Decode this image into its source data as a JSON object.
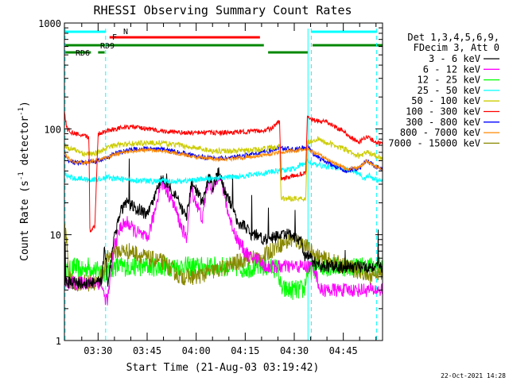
{
  "chart_data": {
    "type": "line",
    "title": "RHESSI Observing Summary Count Rates",
    "xlabel": "Start Time (21-Aug-03 03:19:42)",
    "ylabel_main": "Count Rate (s",
    "ylabel_exp1": "-1",
    "ylabel_mid": " detector",
    "ylabel_exp2": "-1",
    "ylabel_end": ")",
    "yscale": "log",
    "ylim": [
      1,
      1000
    ],
    "xlim_minutes": [
      199.7,
      297.0
    ],
    "x_ticks": [
      {
        "minute": 210,
        "label": "03:30"
      },
      {
        "minute": 225,
        "label": "03:45"
      },
      {
        "minute": 240,
        "label": "04:00"
      },
      {
        "minute": 255,
        "label": "04:15"
      },
      {
        "minute": 270,
        "label": "04:30"
      },
      {
        "minute": 285,
        "label": "04:45"
      }
    ],
    "y_ticks": [
      {
        "value": 1,
        "label": "1"
      },
      {
        "value": 10,
        "label": "10"
      },
      {
        "value": 100,
        "label": "100"
      },
      {
        "value": 1000,
        "label": "1000"
      }
    ],
    "legend_header": [
      "Det 1,3,4,5,6,9,",
      "FDecim 3, Att 0"
    ],
    "series": [
      {
        "name": "3 - 6 keV",
        "color": "#000000",
        "noise": 0.08,
        "spikes": 1,
        "t": [
          199.7,
          206,
          206.5,
          207,
          207.5,
          208,
          208.5,
          209.8,
          210,
          211,
          212,
          213,
          215,
          217,
          219,
          221,
          223,
          225,
          227,
          229,
          230,
          233,
          235,
          237,
          238.5,
          240,
          242,
          243,
          244,
          245,
          247,
          249,
          250,
          251.5,
          253,
          255,
          256.5,
          259,
          261,
          264,
          266,
          268,
          270,
          272,
          273,
          274,
          276,
          278,
          280,
          284,
          288,
          292,
          297
        ],
        "v": [
          3.5,
          3.5,
          3.5,
          3.5,
          3.5,
          3.5,
          3.5,
          3.5,
          3.5,
          3.5,
          8,
          3.5,
          10,
          17,
          20,
          18,
          17,
          15,
          21,
          33,
          33,
          26,
          19,
          14,
          30,
          26,
          20,
          27,
          35,
          28,
          40,
          24,
          22,
          16,
          13,
          12,
          10,
          10,
          9,
          9.5,
          10,
          10,
          9.5,
          9,
          6,
          6.5,
          5.5,
          5,
          5,
          5,
          5,
          5,
          5
        ]
      },
      {
        "name": "6 - 12 keV",
        "color": "#ff00ff",
        "noise": 0.09,
        "spikes": 0,
        "t": [
          199.7,
          206,
          207,
          208,
          209,
          210,
          211,
          212,
          213,
          215,
          217,
          219,
          221,
          223,
          225,
          227,
          229,
          230,
          233,
          235,
          237,
          238.5,
          240,
          242,
          243,
          244,
          245,
          247,
          249,
          250,
          251.5,
          253,
          255,
          256.5,
          259,
          261,
          264,
          266,
          268,
          270,
          272,
          273,
          274,
          276,
          278,
          280,
          284,
          288,
          292,
          297
        ],
        "v": [
          3.5,
          3.5,
          3.5,
          3.5,
          3.5,
          3.5,
          3.5,
          2.5,
          2.5,
          8,
          12,
          13,
          11,
          10,
          9,
          15,
          30,
          30,
          20,
          13,
          9,
          27,
          20,
          14,
          25,
          33,
          25,
          39,
          21,
          15,
          11,
          8.5,
          7,
          6,
          6,
          5,
          5,
          5,
          5,
          5,
          5,
          5,
          5,
          5,
          3,
          3,
          3,
          3,
          3,
          3
        ]
      },
      {
        "name": "12 - 25 keV",
        "color": "#00ff00",
        "noise": 0.13,
        "spikes": 0,
        "t": [
          199.7,
          201,
          203,
          205,
          207,
          210,
          213,
          215,
          220,
          225,
          230,
          235,
          240,
          245,
          250,
          255,
          260,
          265,
          266,
          268,
          270,
          272,
          273,
          274,
          278,
          282,
          286,
          290,
          294,
          297
        ],
        "v": [
          5,
          4.5,
          5,
          4.5,
          5,
          4.5,
          4.5,
          5,
          5,
          5,
          5,
          5,
          5,
          5,
          5,
          4.8,
          5,
          4.8,
          3,
          3,
          3,
          3,
          3,
          4.5,
          5,
          5,
          5,
          5,
          5,
          5
        ]
      },
      {
        "name": "25 - 50 keV",
        "color": "#00ffff",
        "noise": 0.035,
        "spikes": 0,
        "t": [
          199.7,
          201,
          203,
          205,
          207,
          209,
          211,
          213,
          215,
          220,
          225,
          230,
          235,
          240,
          245,
          250,
          255,
          260,
          265,
          270,
          271,
          273,
          274,
          276,
          280,
          285,
          290,
          291,
          293,
          295,
          297
        ],
        "v": [
          38,
          35,
          34,
          34,
          33,
          33,
          34,
          35,
          34,
          33,
          32,
          32,
          32,
          33,
          34,
          35,
          36,
          38,
          40,
          42,
          44,
          47,
          50,
          46,
          44,
          42,
          38,
          34,
          36,
          33,
          32
        ]
      },
      {
        "name": "50 - 100 keV",
        "color": "#cccc00",
        "noise": 0.035,
        "spikes": 0,
        "t": [
          199.7,
          201,
          203,
          206,
          207.5,
          209,
          210,
          212,
          215,
          220,
          225,
          230,
          235,
          240,
          245,
          250,
          255,
          260,
          263,
          265,
          265.5,
          266,
          268,
          270,
          273,
          273.5,
          274,
          277,
          280,
          285,
          288,
          290,
          292,
          294,
          297
        ],
        "v": [
          70,
          65,
          63,
          58,
          58,
          58,
          60,
          65,
          70,
          72,
          74,
          73,
          70,
          66,
          62,
          62,
          62,
          64,
          67,
          68,
          68,
          22,
          22,
          22,
          22,
          22,
          75,
          80,
          74,
          65,
          58,
          55,
          60,
          58,
          52
        ]
      },
      {
        "name": "100 - 300 keV",
        "color": "#ff0000",
        "noise": 0.03,
        "spikes": 0,
        "t": [
          199.7,
          200.5,
          202,
          204,
          206,
          207.2,
          207.5,
          208,
          209,
          210,
          211,
          212,
          215,
          220,
          225,
          230,
          235,
          240,
          245,
          250,
          255,
          260,
          263,
          265,
          265.5,
          266,
          268,
          270,
          273,
          273.5,
          274,
          276,
          280,
          285,
          288,
          290,
          292,
          295,
          297
        ],
        "v": [
          145,
          100,
          92,
          88,
          85,
          82,
          11,
          11,
          12,
          90,
          92,
          95,
          100,
          105,
          100,
          95,
          92,
          92,
          92,
          92,
          94,
          96,
          100,
          115,
          115,
          33,
          35,
          36,
          38,
          38,
          130,
          120,
          115,
          95,
          80,
          75,
          85,
          75,
          72
        ]
      },
      {
        "name": "300 - 800 keV",
        "color": "#0000ff",
        "noise": 0.03,
        "spikes": 0,
        "t": [
          199.7,
          201,
          203,
          206,
          209,
          212,
          215,
          220,
          225,
          230,
          235,
          240,
          245,
          250,
          255,
          260,
          263,
          265,
          268,
          270,
          273,
          274,
          276,
          278,
          282,
          286,
          290,
          292,
          295,
          297
        ],
        "v": [
          55,
          50,
          48,
          48,
          49,
          52,
          58,
          64,
          65,
          64,
          60,
          55,
          53,
          53,
          56,
          60,
          62,
          66,
          65,
          64,
          66,
          68,
          58,
          52,
          45,
          40,
          42,
          50,
          44,
          42
        ]
      },
      {
        "name": "800 - 7000 keV",
        "color": "#ff8800",
        "noise": 0.025,
        "spikes": 0,
        "t": [
          199.7,
          201,
          203,
          206,
          209,
          212,
          215,
          220,
          225,
          230,
          235,
          240,
          245,
          250,
          255,
          260,
          265,
          270,
          274,
          278,
          282,
          286,
          290,
          292,
          295,
          297
        ],
        "v": [
          60,
          52,
          48,
          48,
          50,
          53,
          57,
          62,
          63,
          62,
          58,
          54,
          52,
          52,
          54,
          56,
          60,
          62,
          64,
          56,
          48,
          42,
          43,
          50,
          44,
          42
        ]
      },
      {
        "name": "7000 - 15000 keV",
        "color": "#888800",
        "noise": 0.11,
        "spikes": 0,
        "t": [
          199.7,
          200.5,
          201,
          202,
          205,
          208,
          210,
          213,
          215,
          220,
          225,
          230,
          235,
          240,
          245,
          250,
          255,
          260,
          265,
          270,
          273,
          275,
          278,
          282,
          286,
          290,
          293,
          295,
          297
        ],
        "v": [
          12,
          8,
          4,
          3.5,
          3.5,
          3.5,
          3.5,
          6,
          7,
          7,
          6,
          5.5,
          4,
          4,
          4.5,
          5,
          6,
          6,
          8,
          9,
          8,
          7,
          6,
          5.5,
          5,
          4.5,
          4,
          4.5,
          4
        ]
      }
    ],
    "vertical_lines_dashed_minutes": [
      199.9,
      212.3,
      275.2,
      295.2
    ],
    "vertical_lines_solid_minutes": [
      274.2
    ],
    "status_bars": [
      {
        "label": "N",
        "color": "#00ffff",
        "row": 0,
        "spans": [
          [
            199.9,
            212.3
          ],
          [
            275.2,
            295.2
          ]
        ]
      },
      {
        "label": "F",
        "color": "#ff0000",
        "row": 1,
        "spans": [
          [
            213.5,
            259.5
          ]
        ]
      },
      {
        "label": "RD9",
        "color": "#008800",
        "row": 2,
        "spans": [
          [
            199.7,
            260.7
          ],
          [
            275.6,
            297.0
          ]
        ]
      },
      {
        "label": "RD6",
        "color": "#008800",
        "row": 3,
        "spans": [
          [
            199.7,
            207.8
          ],
          [
            210.0,
            212.0
          ],
          [
            262.0,
            274.2
          ]
        ]
      }
    ],
    "stamp": "22-Oct-2021 14:28"
  },
  "colors": {
    "axes": "#000000",
    "background": "#ffffff"
  }
}
